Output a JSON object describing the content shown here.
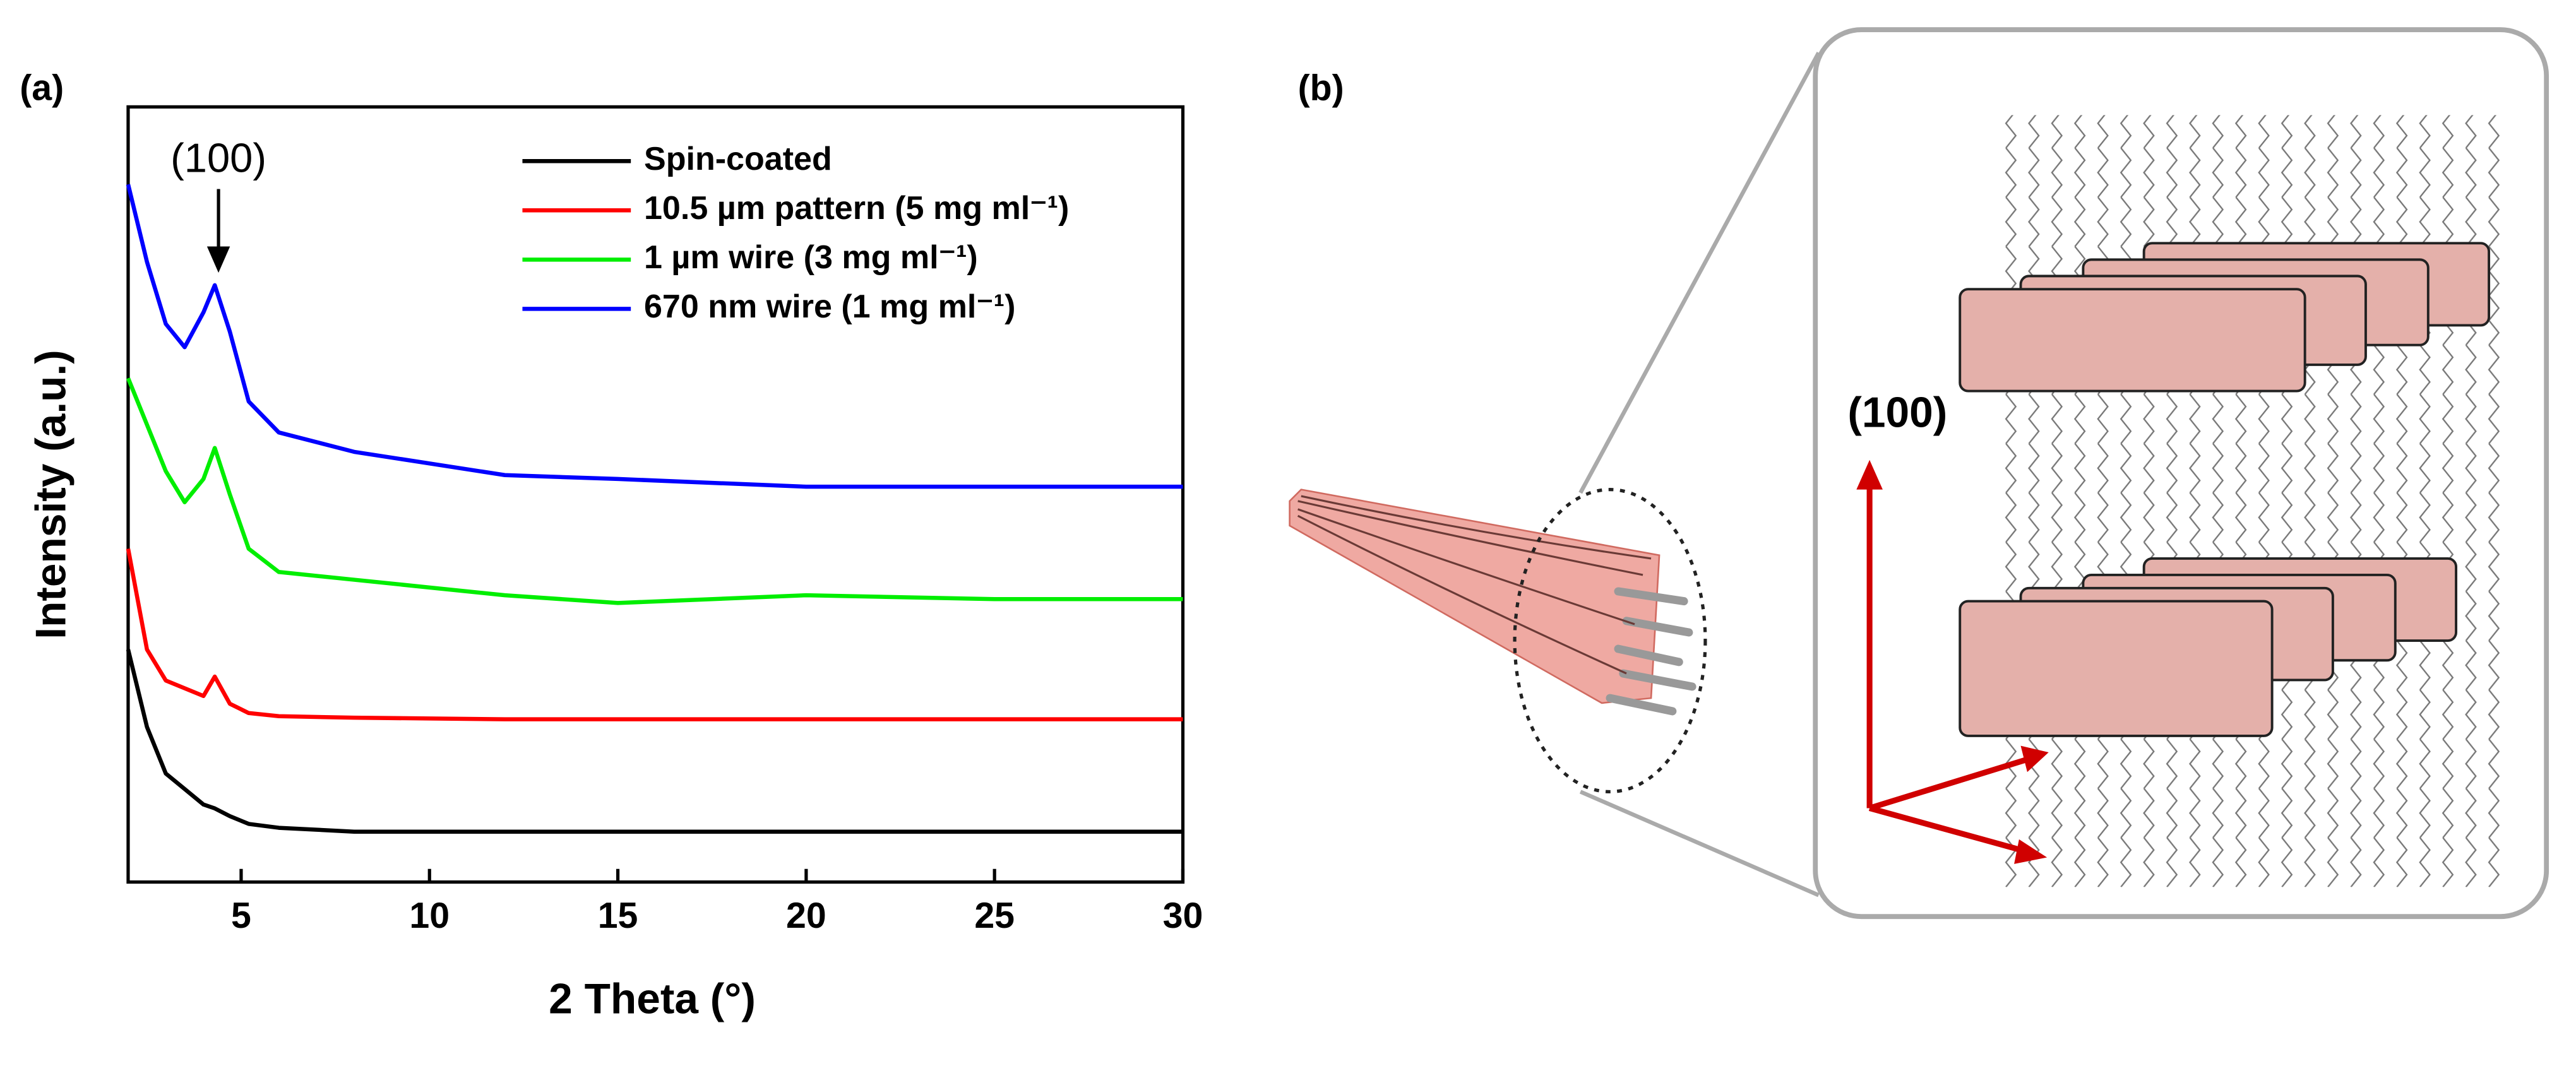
{
  "panel_labels": [
    "(a)",
    "(b)"
  ],
  "chart_data": {
    "type": "line",
    "xlabel": "2 Theta (°)",
    "ylabel": "Intensity (a.u.)",
    "annotation": "(100)",
    "x": [
      2,
      2.5,
      3,
      3.5,
      4,
      4.3,
      4.7,
      5.2,
      6,
      8,
      10,
      12,
      15,
      20,
      25,
      30
    ],
    "series": [
      {
        "name": "Spin-coated",
        "color": "#000000",
        "values": [
          30,
          20,
          14,
          12,
          10,
          9.5,
          8.5,
          7.5,
          7,
          6.5,
          6.5,
          6.5,
          6.5,
          6.5,
          6.5,
          6.5
        ]
      },
      {
        "name": "10.5 µm pattern (5 mg ml⁻¹)",
        "color": "#ff0000",
        "values": [
          43,
          30,
          26,
          25,
          24,
          26.5,
          23,
          21.8,
          21.4,
          21.2,
          21.1,
          21,
          21,
          21,
          21,
          21
        ]
      },
      {
        "name": "1 µm wire (3 mg ml⁻¹)",
        "color": "#00ee00",
        "values": [
          65,
          59,
          53,
          49,
          52,
          56,
          50,
          43,
          40,
          39,
          38,
          37,
          36,
          37,
          36.5,
          36.5
        ]
      },
      {
        "name": "670 nm wire (1 mg ml⁻¹)",
        "color": "#0000ff",
        "values": [
          90,
          80,
          72,
          69,
          73.5,
          77,
          71,
          62,
          58,
          55.5,
          54,
          52.5,
          52,
          51,
          51,
          51
        ]
      }
    ],
    "xlim": [
      2,
      30
    ],
    "xticks": [
      5,
      10,
      15,
      20,
      25,
      30
    ],
    "ylim": [
      0,
      100
    ]
  },
  "diagram": {
    "axis_label": "(100)"
  }
}
